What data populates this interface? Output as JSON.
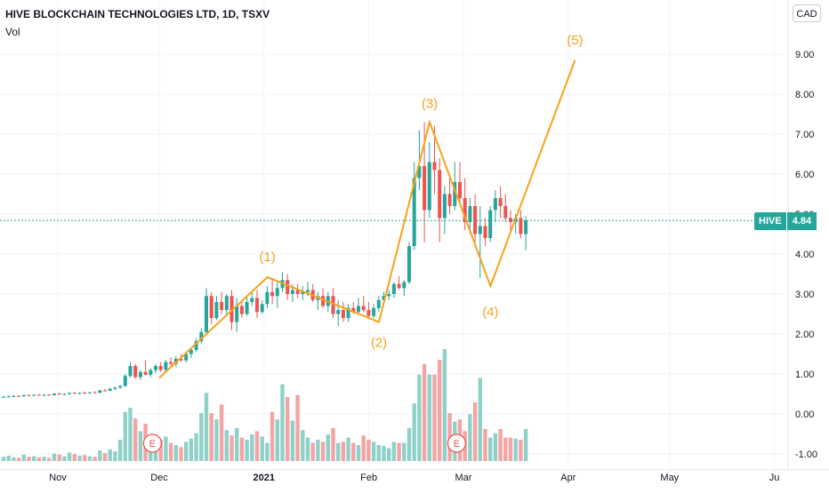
{
  "header": {
    "title": "HIVE BLOCKCHAIN TECHNOLOGIES LTD, 1D, TSXV",
    "volume_label": "Vol"
  },
  "currency_label": "CAD",
  "price_tag": {
    "symbol": "HIVE",
    "value": "4.84"
  },
  "colors": {
    "up": "#26a69a",
    "down": "#ef5350",
    "wave": "#f7a21b",
    "vol_up": "#8fd1c8",
    "vol_down": "#f3a4a4",
    "grid": "#f0f3fa",
    "axis_text": "#131722"
  },
  "chart_data": {
    "type": "candlestick",
    "y_ticks": [
      "9.00",
      "8.00",
      "7.00",
      "6.00",
      "5.00",
      "4.00",
      "3.00",
      "2.00",
      "1.00",
      "0.00",
      "-1.00"
    ],
    "ylim": [
      -1.1,
      9.8
    ],
    "x_ticks": [
      {
        "label": "Nov",
        "day": 0
      },
      {
        "label": "Dec",
        "day": 30
      },
      {
        "label": "2021",
        "day": 61
      },
      {
        "label": "Feb",
        "day": 92
      },
      {
        "label": "Mar",
        "day": 120
      },
      {
        "label": "Apr",
        "day": 151
      },
      {
        "label": "May",
        "day": 181
      },
      {
        "label": "Ju",
        "day": 212
      }
    ],
    "last_price": 4.84,
    "earnings_markers": [
      {
        "label": "E",
        "day": 28
      },
      {
        "label": "E",
        "day": 118
      }
    ],
    "wave_labels": [
      {
        "label": "(1)",
        "day": 62,
        "price": 3.42
      },
      {
        "label": "(2)",
        "day": 95,
        "price": 2.3
      },
      {
        "label": "(3)",
        "day": 110,
        "price": 7.3
      },
      {
        "label": "(4)",
        "day": 128,
        "price": 3.2
      },
      {
        "label": "(5)",
        "day": 153,
        "price": 8.85
      }
    ],
    "wave_path": [
      {
        "day": 30,
        "price": 0.9
      },
      {
        "day": 62,
        "price": 3.42
      },
      {
        "day": 95,
        "price": 2.3
      },
      {
        "day": 110,
        "price": 7.3
      },
      {
        "day": 128,
        "price": 3.2
      },
      {
        "day": 153,
        "price": 8.85
      }
    ],
    "candles": [
      [
        0,
        0.42,
        0.45,
        0.4,
        0.43,
        0.08
      ],
      [
        1,
        0.43,
        0.46,
        0.41,
        0.44,
        0.1
      ],
      [
        2,
        0.44,
        0.47,
        0.42,
        0.45,
        0.07
      ],
      [
        3,
        0.45,
        0.47,
        0.43,
        0.44,
        0.06
      ],
      [
        4,
        0.44,
        0.48,
        0.43,
        0.47,
        0.12
      ],
      [
        5,
        0.47,
        0.49,
        0.45,
        0.46,
        0.08
      ],
      [
        6,
        0.46,
        0.49,
        0.44,
        0.48,
        0.09
      ],
      [
        7,
        0.48,
        0.5,
        0.45,
        0.46,
        0.07
      ],
      [
        8,
        0.46,
        0.49,
        0.44,
        0.48,
        0.08
      ],
      [
        9,
        0.48,
        0.5,
        0.46,
        0.47,
        0.06
      ],
      [
        10,
        0.47,
        0.52,
        0.46,
        0.51,
        0.14
      ],
      [
        11,
        0.51,
        0.53,
        0.48,
        0.49,
        0.12
      ],
      [
        12,
        0.49,
        0.52,
        0.47,
        0.5,
        0.09
      ],
      [
        13,
        0.5,
        0.54,
        0.49,
        0.53,
        0.16
      ],
      [
        14,
        0.53,
        0.55,
        0.5,
        0.51,
        0.13
      ],
      [
        15,
        0.51,
        0.54,
        0.49,
        0.53,
        0.1
      ],
      [
        16,
        0.53,
        0.56,
        0.51,
        0.52,
        0.11
      ],
      [
        17,
        0.52,
        0.55,
        0.5,
        0.54,
        0.09
      ],
      [
        18,
        0.54,
        0.57,
        0.52,
        0.53,
        0.08
      ],
      [
        19,
        0.53,
        0.6,
        0.52,
        0.59,
        0.2
      ],
      [
        20,
        0.59,
        0.63,
        0.56,
        0.58,
        0.15
      ],
      [
        21,
        0.58,
        0.65,
        0.57,
        0.63,
        0.22
      ],
      [
        22,
        0.63,
        0.68,
        0.6,
        0.66,
        0.18
      ],
      [
        23,
        0.66,
        0.72,
        0.63,
        0.7,
        0.4
      ],
      [
        24,
        0.7,
        1.0,
        0.68,
        0.95,
        0.92
      ],
      [
        25,
        0.95,
        1.3,
        0.9,
        1.2,
        1.0
      ],
      [
        26,
        1.2,
        1.25,
        0.88,
        0.92,
        0.8
      ],
      [
        27,
        0.92,
        1.1,
        0.85,
        1.05,
        0.56
      ],
      [
        28,
        1.05,
        1.35,
        0.96,
        0.98,
        0.7
      ],
      [
        29,
        0.98,
        1.15,
        0.92,
        1.1,
        0.34
      ],
      [
        30,
        1.1,
        1.25,
        1.02,
        1.2,
        0.3
      ],
      [
        31,
        1.2,
        1.3,
        1.05,
        1.1,
        0.4
      ],
      [
        32,
        1.1,
        1.35,
        1.08,
        1.3,
        0.46
      ],
      [
        33,
        1.3,
        1.42,
        1.2,
        1.25,
        0.34
      ],
      [
        34,
        1.25,
        1.45,
        1.18,
        1.38,
        0.3
      ],
      [
        35,
        1.38,
        1.5,
        1.3,
        1.34,
        0.26
      ],
      [
        36,
        1.34,
        1.55,
        1.28,
        1.5,
        0.36
      ],
      [
        37,
        1.5,
        1.65,
        1.4,
        1.6,
        0.42
      ],
      [
        38,
        1.6,
        1.9,
        1.55,
        1.82,
        0.52
      ],
      [
        39,
        1.82,
        2.15,
        1.75,
        2.05,
        0.9
      ],
      [
        40,
        2.05,
        3.15,
        2.0,
        2.95,
        1.28
      ],
      [
        41,
        2.95,
        3.05,
        2.25,
        2.4,
        0.9
      ],
      [
        42,
        2.4,
        2.95,
        2.35,
        2.8,
        0.78
      ],
      [
        43,
        2.8,
        3.05,
        2.5,
        2.6,
        1.06
      ],
      [
        44,
        2.6,
        3.0,
        2.45,
        2.95,
        0.58
      ],
      [
        45,
        2.95,
        3.1,
        2.1,
        2.3,
        0.48
      ],
      [
        46,
        2.3,
        2.9,
        2.05,
        2.7,
        0.62
      ],
      [
        47,
        2.7,
        2.85,
        2.4,
        2.5,
        0.44
      ],
      [
        48,
        2.5,
        2.95,
        2.45,
        2.8,
        0.4
      ],
      [
        49,
        2.8,
        3.05,
        2.7,
        2.9,
        0.5
      ],
      [
        50,
        2.9,
        3.1,
        2.4,
        2.55,
        0.56
      ],
      [
        51,
        2.55,
        2.85,
        2.5,
        2.75,
        0.46
      ],
      [
        52,
        2.75,
        3.2,
        2.65,
        3.05,
        0.34
      ],
      [
        53,
        3.05,
        3.4,
        2.75,
        2.95,
        0.92
      ],
      [
        54,
        2.95,
        3.3,
        2.65,
        3.15,
        0.78
      ],
      [
        55,
        3.15,
        3.55,
        3.05,
        3.35,
        1.44
      ],
      [
        56,
        3.35,
        3.5,
        2.85,
        3.0,
        1.2
      ],
      [
        57,
        3.0,
        3.25,
        2.8,
        3.1,
        0.76
      ],
      [
        58,
        3.1,
        3.25,
        2.9,
        3.0,
        1.24
      ],
      [
        59,
        3.0,
        3.2,
        2.85,
        3.05,
        0.58
      ],
      [
        60,
        3.05,
        3.3,
        2.95,
        3.1,
        0.44
      ],
      [
        61,
        3.1,
        3.25,
        2.8,
        2.85,
        0.34
      ],
      [
        62,
        2.85,
        3.05,
        2.6,
        2.95,
        0.4
      ],
      [
        63,
        2.95,
        3.15,
        2.65,
        2.7,
        0.36
      ],
      [
        64,
        2.7,
        3.05,
        2.55,
        2.95,
        0.5
      ],
      [
        65,
        2.95,
        3.15,
        2.4,
        2.5,
        0.62
      ],
      [
        66,
        2.5,
        2.85,
        2.2,
        2.6,
        0.34
      ],
      [
        67,
        2.6,
        2.8,
        2.3,
        2.4,
        0.36
      ],
      [
        68,
        2.4,
        2.75,
        2.3,
        2.65,
        0.44
      ],
      [
        69,
        2.65,
        2.8,
        2.5,
        2.55,
        0.34
      ],
      [
        70,
        2.55,
        2.9,
        2.5,
        2.7,
        0.3
      ],
      [
        71,
        2.7,
        2.95,
        2.55,
        2.6,
        0.48
      ],
      [
        72,
        2.6,
        2.8,
        2.4,
        2.45,
        0.4
      ],
      [
        73,
        2.45,
        2.75,
        2.4,
        2.65,
        0.36
      ],
      [
        74,
        2.65,
        2.95,
        2.55,
        2.85,
        0.3
      ],
      [
        75,
        2.85,
        3.05,
        2.7,
        2.95,
        0.28
      ],
      [
        76,
        2.95,
        3.1,
        2.85,
        3.0,
        0.24
      ],
      [
        77,
        3.0,
        3.3,
        2.9,
        3.25,
        0.36
      ],
      [
        78,
        3.25,
        3.45,
        3.1,
        3.15,
        0.34
      ],
      [
        79,
        3.15,
        3.35,
        2.95,
        3.3,
        0.34
      ],
      [
        80,
        3.3,
        4.3,
        3.25,
        4.2,
        0.62
      ],
      [
        81,
        4.2,
        6.3,
        4.1,
        5.9,
        1.08
      ],
      [
        82,
        5.9,
        7.1,
        5.6,
        6.2,
        1.62
      ],
      [
        83,
        6.2,
        7.3,
        4.3,
        5.1,
        1.82
      ],
      [
        84,
        5.1,
        6.8,
        4.9,
        6.3,
        1.62
      ],
      [
        85,
        6.3,
        7.2,
        5.5,
        6.1,
        1.62
      ],
      [
        86,
        6.1,
        6.4,
        4.3,
        4.9,
        1.9
      ],
      [
        87,
        4.9,
        5.7,
        4.5,
        5.5,
        2.1
      ],
      [
        88,
        5.5,
        6.0,
        5.0,
        5.2,
        0.9
      ],
      [
        89,
        5.2,
        6.3,
        5.1,
        5.8,
        0.74
      ],
      [
        90,
        5.8,
        6.3,
        5.3,
        5.4,
        0.78
      ],
      [
        91,
        5.4,
        5.9,
        4.6,
        4.8,
        0.56
      ],
      [
        92,
        4.8,
        5.4,
        4.5,
        5.2,
        0.88
      ],
      [
        93,
        5.2,
        5.5,
        4.3,
        4.5,
        1.1
      ],
      [
        94,
        4.5,
        5.2,
        3.4,
        4.7,
        1.56
      ],
      [
        95,
        4.7,
        4.9,
        4.2,
        4.4,
        0.6
      ],
      [
        96,
        4.4,
        5.2,
        4.3,
        5.1,
        0.44
      ],
      [
        97,
        5.1,
        5.6,
        4.8,
        5.4,
        0.52
      ],
      [
        98,
        5.4,
        5.7,
        4.9,
        5.2,
        0.6
      ],
      [
        99,
        5.2,
        5.5,
        4.8,
        4.9,
        0.44
      ],
      [
        100,
        4.9,
        5.1,
        4.6,
        4.8,
        0.44
      ],
      [
        101,
        4.8,
        5.0,
        4.5,
        4.9,
        0.42
      ],
      [
        102,
        4.9,
        5.1,
        4.4,
        4.5,
        0.4
      ],
      [
        103,
        4.5,
        4.95,
        4.1,
        4.84,
        0.6
      ]
    ]
  }
}
